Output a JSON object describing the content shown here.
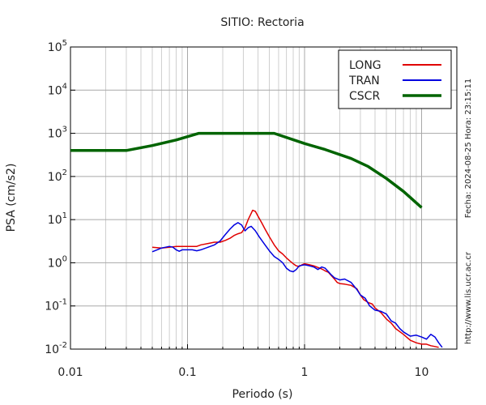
{
  "chart_data": {
    "type": "line",
    "title": "SITIO: Rectoria",
    "xlabel": "Periodo (s)",
    "ylabel": "PSA (cm/s2)",
    "xscale": "log",
    "yscale": "log",
    "xlim": [
      0.01,
      20
    ],
    "ylim": [
      0.01,
      100000
    ],
    "x_ticks": [
      {
        "value": 0.01,
        "label": "0.01"
      },
      {
        "value": 0.1,
        "label": "0.1"
      },
      {
        "value": 1,
        "label": "1"
      },
      {
        "value": 10,
        "label": "10"
      }
    ],
    "y_ticks": [
      {
        "value": 0.01,
        "base": "10",
        "exp": "-2"
      },
      {
        "value": 0.1,
        "base": "10",
        "exp": "-1"
      },
      {
        "value": 1,
        "base": "10",
        "exp": "0"
      },
      {
        "value": 10,
        "base": "10",
        "exp": "1"
      },
      {
        "value": 100,
        "base": "10",
        "exp": "2"
      },
      {
        "value": 1000,
        "base": "10",
        "exp": "3"
      },
      {
        "value": 10000,
        "base": "10",
        "exp": "4"
      },
      {
        "value": 100000,
        "base": "10",
        "exp": "5"
      }
    ],
    "grid": {
      "x_major": true,
      "x_minor": true,
      "y_major": true
    },
    "legend_position": "top-right",
    "series": [
      {
        "name": "LONG",
        "color": "#e00000",
        "points": [
          [
            0.05,
            2.3
          ],
          [
            0.06,
            2.2
          ],
          [
            0.07,
            2.3
          ],
          [
            0.08,
            2.4
          ],
          [
            0.09,
            2.4
          ],
          [
            0.1,
            2.4
          ],
          [
            0.11,
            2.4
          ],
          [
            0.12,
            2.4
          ],
          [
            0.13,
            2.6
          ],
          [
            0.15,
            2.8
          ],
          [
            0.17,
            3.0
          ],
          [
            0.19,
            3.0
          ],
          [
            0.21,
            3.3
          ],
          [
            0.23,
            3.7
          ],
          [
            0.25,
            4.3
          ],
          [
            0.27,
            4.7
          ],
          [
            0.29,
            5.0
          ],
          [
            0.31,
            6.5
          ],
          [
            0.33,
            10
          ],
          [
            0.35,
            14
          ],
          [
            0.36,
            16.5
          ],
          [
            0.38,
            15.5
          ],
          [
            0.4,
            12
          ],
          [
            0.43,
            8.5
          ],
          [
            0.46,
            6
          ],
          [
            0.5,
            4
          ],
          [
            0.55,
            2.6
          ],
          [
            0.6,
            1.9
          ],
          [
            0.65,
            1.6
          ],
          [
            0.7,
            1.3
          ],
          [
            0.75,
            1.1
          ],
          [
            0.8,
            0.95
          ],
          [
            0.85,
            0.85
          ],
          [
            0.9,
            0.82
          ],
          [
            0.95,
            0.9
          ],
          [
            1.0,
            0.95
          ],
          [
            1.1,
            0.9
          ],
          [
            1.2,
            0.85
          ],
          [
            1.3,
            0.78
          ],
          [
            1.4,
            0.72
          ],
          [
            1.5,
            0.65
          ],
          [
            1.6,
            0.6
          ],
          [
            1.7,
            0.5
          ],
          [
            1.8,
            0.42
          ],
          [
            1.9,
            0.35
          ],
          [
            2.0,
            0.33
          ],
          [
            2.2,
            0.32
          ],
          [
            2.5,
            0.3
          ],
          [
            2.8,
            0.25
          ],
          [
            3.0,
            0.18
          ],
          [
            3.2,
            0.14
          ],
          [
            3.5,
            0.12
          ],
          [
            3.8,
            0.11
          ],
          [
            4.0,
            0.09
          ],
          [
            4.5,
            0.07
          ],
          [
            5.0,
            0.05
          ],
          [
            5.5,
            0.04
          ],
          [
            6.0,
            0.03
          ],
          [
            7.0,
            0.022
          ],
          [
            8.0,
            0.016
          ],
          [
            9.0,
            0.014
          ],
          [
            10,
            0.013
          ],
          [
            11,
            0.013
          ],
          [
            12,
            0.012
          ],
          [
            13,
            0.0115
          ],
          [
            14,
            0.011
          ]
        ]
      },
      {
        "name": "TRAN",
        "color": "#0000e0",
        "points": [
          [
            0.05,
            1.8
          ],
          [
            0.055,
            2.0
          ],
          [
            0.06,
            2.2
          ],
          [
            0.065,
            2.3
          ],
          [
            0.07,
            2.4
          ],
          [
            0.075,
            2.3
          ],
          [
            0.08,
            2.0
          ],
          [
            0.085,
            1.85
          ],
          [
            0.09,
            2.0
          ],
          [
            0.1,
            2.0
          ],
          [
            0.11,
            2.0
          ],
          [
            0.12,
            1.9
          ],
          [
            0.13,
            2.0
          ],
          [
            0.15,
            2.3
          ],
          [
            0.17,
            2.6
          ],
          [
            0.19,
            3.2
          ],
          [
            0.21,
            4.5
          ],
          [
            0.23,
            6.0
          ],
          [
            0.25,
            7.5
          ],
          [
            0.27,
            8.5
          ],
          [
            0.29,
            7.5
          ],
          [
            0.31,
            5.5
          ],
          [
            0.33,
            6.5
          ],
          [
            0.35,
            7.0
          ],
          [
            0.38,
            5.5
          ],
          [
            0.41,
            4.0
          ],
          [
            0.45,
            2.8
          ],
          [
            0.5,
            1.9
          ],
          [
            0.55,
            1.4
          ],
          [
            0.6,
            1.2
          ],
          [
            0.65,
            1.0
          ],
          [
            0.7,
            0.75
          ],
          [
            0.75,
            0.65
          ],
          [
            0.8,
            0.62
          ],
          [
            0.85,
            0.7
          ],
          [
            0.9,
            0.85
          ],
          [
            1.0,
            0.9
          ],
          [
            1.1,
            0.85
          ],
          [
            1.2,
            0.8
          ],
          [
            1.3,
            0.7
          ],
          [
            1.4,
            0.8
          ],
          [
            1.5,
            0.75
          ],
          [
            1.6,
            0.62
          ],
          [
            1.7,
            0.52
          ],
          [
            1.8,
            0.45
          ],
          [
            2.0,
            0.4
          ],
          [
            2.2,
            0.42
          ],
          [
            2.5,
            0.35
          ],
          [
            2.8,
            0.24
          ],
          [
            3.0,
            0.18
          ],
          [
            3.3,
            0.15
          ],
          [
            3.6,
            0.1
          ],
          [
            4.0,
            0.08
          ],
          [
            4.5,
            0.075
          ],
          [
            5.0,
            0.065
          ],
          [
            5.5,
            0.045
          ],
          [
            6.0,
            0.04
          ],
          [
            6.5,
            0.03
          ],
          [
            7.0,
            0.025
          ],
          [
            8.0,
            0.02
          ],
          [
            9.0,
            0.021
          ],
          [
            10,
            0.019
          ],
          [
            11,
            0.017
          ],
          [
            12,
            0.022
          ],
          [
            13,
            0.019
          ],
          [
            14,
            0.014
          ],
          [
            15,
            0.011
          ]
        ]
      },
      {
        "name": "CSCR",
        "color": "#006400",
        "points": [
          [
            0.01,
            400
          ],
          [
            0.03,
            400
          ],
          [
            0.05,
            520
          ],
          [
            0.08,
            700
          ],
          [
            0.125,
            1000
          ],
          [
            0.55,
            1000
          ],
          [
            1.0,
            580
          ],
          [
            1.5,
            420
          ],
          [
            2.5,
            260
          ],
          [
            3.5,
            170
          ],
          [
            5.0,
            90
          ],
          [
            7.0,
            45
          ],
          [
            10,
            19
          ]
        ]
      }
    ]
  },
  "side_texts": {
    "fecha": "Fecha: 2024-08-25 Hora: 23:15:11",
    "url": "http://www.lis.ucr.ac.cr"
  }
}
